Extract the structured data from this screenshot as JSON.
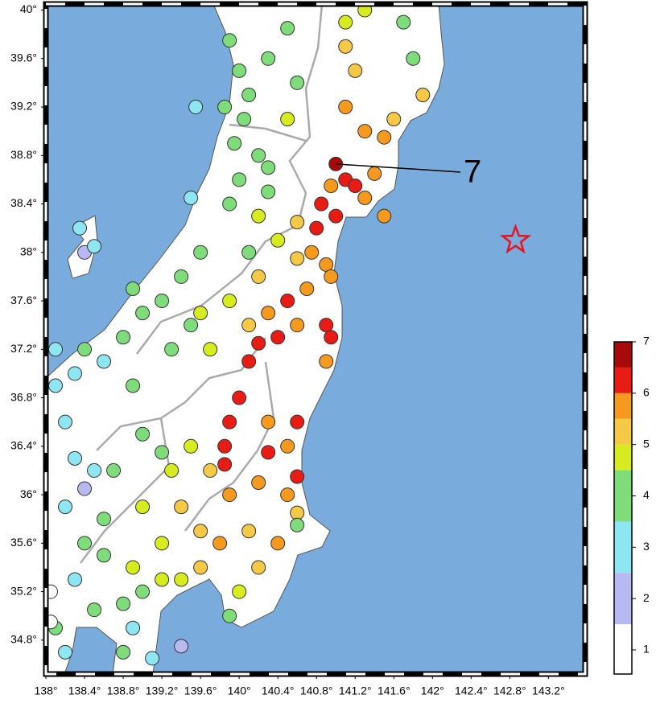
{
  "chart_data": {
    "type": "scatter",
    "xlim": [
      138,
      143.58
    ],
    "ylim": [
      34.52,
      40.05
    ],
    "xticks": [
      {
        "value": 138,
        "label": "138°"
      },
      {
        "value": 138.4,
        "label": "138.4°"
      },
      {
        "value": 138.8,
        "label": "138.8°"
      },
      {
        "value": 139.2,
        "label": "139.2°"
      },
      {
        "value": 139.6,
        "label": "139.6°"
      },
      {
        "value": 140,
        "label": "140°"
      },
      {
        "value": 140.4,
        "label": "140.4°"
      },
      {
        "value": 140.8,
        "label": "140.8°"
      },
      {
        "value": 141.2,
        "label": "141.2°"
      },
      {
        "value": 141.6,
        "label": "141.6°"
      },
      {
        "value": 142,
        "label": "142°"
      },
      {
        "value": 142.4,
        "label": "142.4°"
      },
      {
        "value": 142.8,
        "label": "142.8°"
      },
      {
        "value": 143.2,
        "label": "143.2°"
      }
    ],
    "yticks": [
      {
        "value": 34.8,
        "label": "34.8°"
      },
      {
        "value": 35.2,
        "label": "35.2°"
      },
      {
        "value": 35.6,
        "label": "35.6°"
      },
      {
        "value": 36,
        "label": "36°"
      },
      {
        "value": 36.4,
        "label": "36.4°"
      },
      {
        "value": 36.8,
        "label": "36.8°"
      },
      {
        "value": 37.2,
        "label": "37.2°"
      },
      {
        "value": 37.6,
        "label": "37.6°"
      },
      {
        "value": 38,
        "label": "38°"
      },
      {
        "value": 38.4,
        "label": "38.4°"
      },
      {
        "value": 38.8,
        "label": "38.8°"
      },
      {
        "value": 39.2,
        "label": "39.2°"
      },
      {
        "value": 39.6,
        "label": "39.6°"
      },
      {
        "value": 40,
        "label": "40°"
      }
    ],
    "points": [
      {
        "x": 139.9,
        "y": 39.75,
        "intensity": 4
      },
      {
        "x": 140.0,
        "y": 39.5,
        "intensity": 4
      },
      {
        "x": 140.1,
        "y": 39.3,
        "intensity": 4
      },
      {
        "x": 139.85,
        "y": 39.2,
        "intensity": 4
      },
      {
        "x": 140.05,
        "y": 39.1,
        "intensity": 4
      },
      {
        "x": 139.95,
        "y": 38.9,
        "intensity": 4
      },
      {
        "x": 140.2,
        "y": 38.8,
        "intensity": 4
      },
      {
        "x": 140.3,
        "y": 39.6,
        "intensity": 4
      },
      {
        "x": 140.5,
        "y": 39.85,
        "intensity": 4
      },
      {
        "x": 140.6,
        "y": 39.4,
        "intensity": 4
      },
      {
        "x": 140.5,
        "y": 39.1,
        "intensity": 4.7
      },
      {
        "x": 141.1,
        "y": 39.9,
        "intensity": 4.7
      },
      {
        "x": 141.1,
        "y": 39.7,
        "intensity": 5.2
      },
      {
        "x": 141.2,
        "y": 39.5,
        "intensity": 5.2
      },
      {
        "x": 141.1,
        "y": 39.2,
        "intensity": 5.7
      },
      {
        "x": 141.3,
        "y": 39.0,
        "intensity": 5.7
      },
      {
        "x": 141.5,
        "y": 38.95,
        "intensity": 5.7
      },
      {
        "x": 141.8,
        "y": 39.6,
        "intensity": 4
      },
      {
        "x": 141.9,
        "y": 39.3,
        "intensity": 5.2
      },
      {
        "x": 141.6,
        "y": 39.1,
        "intensity": 5.2
      },
      {
        "x": 141.3,
        "y": 40.0,
        "intensity": 4.7
      },
      {
        "x": 141.7,
        "y": 39.9,
        "intensity": 4
      },
      {
        "x": 141.0,
        "y": 38.73,
        "intensity": 7
      },
      {
        "x": 141.1,
        "y": 38.6,
        "intensity": 6.2
      },
      {
        "x": 141.2,
        "y": 38.55,
        "intensity": 6.2
      },
      {
        "x": 140.95,
        "y": 38.55,
        "intensity": 5.7
      },
      {
        "x": 140.85,
        "y": 38.4,
        "intensity": 6.2
      },
      {
        "x": 141.0,
        "y": 38.3,
        "intensity": 6.2
      },
      {
        "x": 141.3,
        "y": 38.45,
        "intensity": 5.7
      },
      {
        "x": 141.5,
        "y": 38.3,
        "intensity": 5.7
      },
      {
        "x": 141.4,
        "y": 38.65,
        "intensity": 5.7
      },
      {
        "x": 140.8,
        "y": 38.2,
        "intensity": 6.2
      },
      {
        "x": 140.75,
        "y": 38.0,
        "intensity": 5.7
      },
      {
        "x": 140.9,
        "y": 37.9,
        "intensity": 5.7
      },
      {
        "x": 140.6,
        "y": 38.25,
        "intensity": 5.2
      },
      {
        "x": 140.6,
        "y": 37.95,
        "intensity": 5.2
      },
      {
        "x": 140.3,
        "y": 38.5,
        "intensity": 4
      },
      {
        "x": 140.2,
        "y": 38.3,
        "intensity": 4.7
      },
      {
        "x": 140.4,
        "y": 38.1,
        "intensity": 4.7
      },
      {
        "x": 140.1,
        "y": 38.0,
        "intensity": 4
      },
      {
        "x": 139.9,
        "y": 38.4,
        "intensity": 4
      },
      {
        "x": 140.3,
        "y": 38.7,
        "intensity": 4
      },
      {
        "x": 140.0,
        "y": 38.6,
        "intensity": 4
      },
      {
        "x": 139.6,
        "y": 38.0,
        "intensity": 4
      },
      {
        "x": 139.4,
        "y": 37.8,
        "intensity": 4
      },
      {
        "x": 139.2,
        "y": 37.6,
        "intensity": 4
      },
      {
        "x": 139.0,
        "y": 37.5,
        "intensity": 4
      },
      {
        "x": 138.8,
        "y": 37.3,
        "intensity": 4
      },
      {
        "x": 138.6,
        "y": 37.1,
        "intensity": 3
      },
      {
        "x": 138.3,
        "y": 37.0,
        "intensity": 3
      },
      {
        "x": 138.1,
        "y": 36.9,
        "intensity": 3
      },
      {
        "x": 138.2,
        "y": 36.6,
        "intensity": 3
      },
      {
        "x": 138.4,
        "y": 37.2,
        "intensity": 4
      },
      {
        "x": 138.9,
        "y": 37.7,
        "intensity": 4
      },
      {
        "x": 138.1,
        "y": 37.2,
        "intensity": 3
      },
      {
        "x": 138.4,
        "y": 38.0,
        "intensity": 2
      },
      {
        "x": 138.35,
        "y": 38.2,
        "intensity": 3
      },
      {
        "x": 138.5,
        "y": 38.05,
        "intensity": 3
      },
      {
        "x": 139.5,
        "y": 37.4,
        "intensity": 4
      },
      {
        "x": 139.3,
        "y": 37.2,
        "intensity": 4
      },
      {
        "x": 138.9,
        "y": 36.9,
        "intensity": 4
      },
      {
        "x": 139.55,
        "y": 39.2,
        "intensity": 3
      },
      {
        "x": 139.5,
        "y": 38.45,
        "intensity": 3
      },
      {
        "x": 140.5,
        "y": 37.6,
        "intensity": 6.2
      },
      {
        "x": 140.4,
        "y": 37.3,
        "intensity": 6.2
      },
      {
        "x": 140.2,
        "y": 37.25,
        "intensity": 6.2
      },
      {
        "x": 140.1,
        "y": 37.1,
        "intensity": 6.2
      },
      {
        "x": 140.9,
        "y": 37.4,
        "intensity": 6.2
      },
      {
        "x": 140.95,
        "y": 37.3,
        "intensity": 6.2
      },
      {
        "x": 140.9,
        "y": 37.1,
        "intensity": 5.7
      },
      {
        "x": 140.6,
        "y": 37.4,
        "intensity": 5.7
      },
      {
        "x": 140.3,
        "y": 37.5,
        "intensity": 5.7
      },
      {
        "x": 140.1,
        "y": 37.4,
        "intensity": 5.2
      },
      {
        "x": 139.9,
        "y": 37.6,
        "intensity": 4.7
      },
      {
        "x": 139.6,
        "y": 37.5,
        "intensity": 4.7
      },
      {
        "x": 139.7,
        "y": 37.2,
        "intensity": 4.7
      },
      {
        "x": 140.7,
        "y": 37.7,
        "intensity": 5.7
      },
      {
        "x": 140.95,
        "y": 37.8,
        "intensity": 5.7
      },
      {
        "x": 140.2,
        "y": 37.8,
        "intensity": 5.2
      },
      {
        "x": 140.0,
        "y": 36.8,
        "intensity": 6.2
      },
      {
        "x": 139.9,
        "y": 36.6,
        "intensity": 6.2
      },
      {
        "x": 139.85,
        "y": 36.4,
        "intensity": 6.2
      },
      {
        "x": 139.85,
        "y": 36.25,
        "intensity": 6.2
      },
      {
        "x": 140.3,
        "y": 36.35,
        "intensity": 6.2
      },
      {
        "x": 140.6,
        "y": 36.15,
        "intensity": 6.2
      },
      {
        "x": 140.6,
        "y": 36.6,
        "intensity": 6.2
      },
      {
        "x": 140.3,
        "y": 36.6,
        "intensity": 5.7
      },
      {
        "x": 140.5,
        "y": 36.4,
        "intensity": 5.7
      },
      {
        "x": 140.2,
        "y": 36.1,
        "intensity": 5.7
      },
      {
        "x": 140.5,
        "y": 36.0,
        "intensity": 5.7
      },
      {
        "x": 140.6,
        "y": 35.85,
        "intensity": 5.2
      },
      {
        "x": 139.9,
        "y": 36.0,
        "intensity": 5.7
      },
      {
        "x": 139.7,
        "y": 36.2,
        "intensity": 5.2
      },
      {
        "x": 139.5,
        "y": 36.4,
        "intensity": 4.7
      },
      {
        "x": 139.3,
        "y": 36.2,
        "intensity": 4.7
      },
      {
        "x": 139.2,
        "y": 36.35,
        "intensity": 4
      },
      {
        "x": 139.0,
        "y": 36.5,
        "intensity": 4
      },
      {
        "x": 138.7,
        "y": 36.2,
        "intensity": 4
      },
      {
        "x": 138.5,
        "y": 36.2,
        "intensity": 3
      },
      {
        "x": 138.3,
        "y": 36.3,
        "intensity": 3
      },
      {
        "x": 138.4,
        "y": 36.05,
        "intensity": 2
      },
      {
        "x": 138.2,
        "y": 35.9,
        "intensity": 3
      },
      {
        "x": 138.6,
        "y": 35.8,
        "intensity": 4
      },
      {
        "x": 139.0,
        "y": 35.9,
        "intensity": 4.7
      },
      {
        "x": 139.4,
        "y": 35.9,
        "intensity": 5.2
      },
      {
        "x": 139.6,
        "y": 35.7,
        "intensity": 5.2
      },
      {
        "x": 139.8,
        "y": 35.6,
        "intensity": 5.7
      },
      {
        "x": 140.1,
        "y": 35.7,
        "intensity": 5.2
      },
      {
        "x": 140.4,
        "y": 35.6,
        "intensity": 5.7
      },
      {
        "x": 140.2,
        "y": 35.4,
        "intensity": 5.2
      },
      {
        "x": 140.0,
        "y": 35.2,
        "intensity": 4.7
      },
      {
        "x": 139.9,
        "y": 35.0,
        "intensity": 4
      },
      {
        "x": 139.6,
        "y": 35.4,
        "intensity": 5.2
      },
      {
        "x": 139.4,
        "y": 35.3,
        "intensity": 4.7
      },
      {
        "x": 139.2,
        "y": 35.3,
        "intensity": 4.7
      },
      {
        "x": 139.0,
        "y": 35.2,
        "intensity": 4
      },
      {
        "x": 138.9,
        "y": 35.4,
        "intensity": 4.7
      },
      {
        "x": 138.6,
        "y": 35.5,
        "intensity": 4
      },
      {
        "x": 138.4,
        "y": 35.6,
        "intensity": 4
      },
      {
        "x": 138.3,
        "y": 35.3,
        "intensity": 3
      },
      {
        "x": 138.5,
        "y": 35.05,
        "intensity": 4
      },
      {
        "x": 138.8,
        "y": 35.1,
        "intensity": 4
      },
      {
        "x": 138.9,
        "y": 34.9,
        "intensity": 3
      },
      {
        "x": 138.8,
        "y": 34.7,
        "intensity": 4
      },
      {
        "x": 138.2,
        "y": 34.7,
        "intensity": 3
      },
      {
        "x": 138.1,
        "y": 34.9,
        "intensity": 4
      },
      {
        "x": 138.05,
        "y": 35.2,
        "intensity": 1
      },
      {
        "x": 138.05,
        "y": 34.95,
        "intensity": 1
      },
      {
        "x": 139.1,
        "y": 34.65,
        "intensity": 3
      },
      {
        "x": 139.4,
        "y": 34.75,
        "intensity": 2
      },
      {
        "x": 140.6,
        "y": 35.75,
        "intensity": 4
      },
      {
        "x": 139.2,
        "y": 35.6,
        "intensity": 4.7
      }
    ],
    "epicenter": {
      "x": 142.86,
      "y": 38.1,
      "color": "#e6141e"
    },
    "annotation": "7",
    "land_color": "#ffffff",
    "sea_color": "#79acdc",
    "colorbar": {
      "lim": [
        0.53,
        7
      ],
      "ticks": [
        1,
        2,
        3,
        4,
        5,
        6,
        7
      ],
      "bands": [
        {
          "from": 0.53,
          "to": 1.5,
          "color": "#ffffff"
        },
        {
          "from": 1.5,
          "to": 2.5,
          "color": "#b8b8f2"
        },
        {
          "from": 2.5,
          "to": 3.5,
          "color": "#8ee6f2"
        },
        {
          "from": 3.5,
          "to": 4.5,
          "color": "#7edc7a"
        },
        {
          "from": 4.5,
          "to": 5,
          "color": "#d6ec1e"
        },
        {
          "from": 5,
          "to": 5.5,
          "color": "#f5c846"
        },
        {
          "from": 5.5,
          "to": 6,
          "color": "#f59a1e"
        },
        {
          "from": 6,
          "to": 6.5,
          "color": "#e81c14"
        },
        {
          "from": 6.5,
          "to": 7,
          "color": "#a80a0a"
        }
      ]
    }
  }
}
